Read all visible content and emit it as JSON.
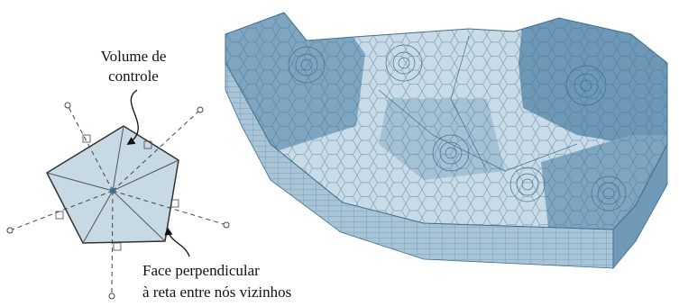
{
  "labels": {
    "control_volume": [
      "Volume de",
      "controle"
    ],
    "face": [
      "Face perpendicular",
      "à reta entre nós vizinhos"
    ]
  }
}
